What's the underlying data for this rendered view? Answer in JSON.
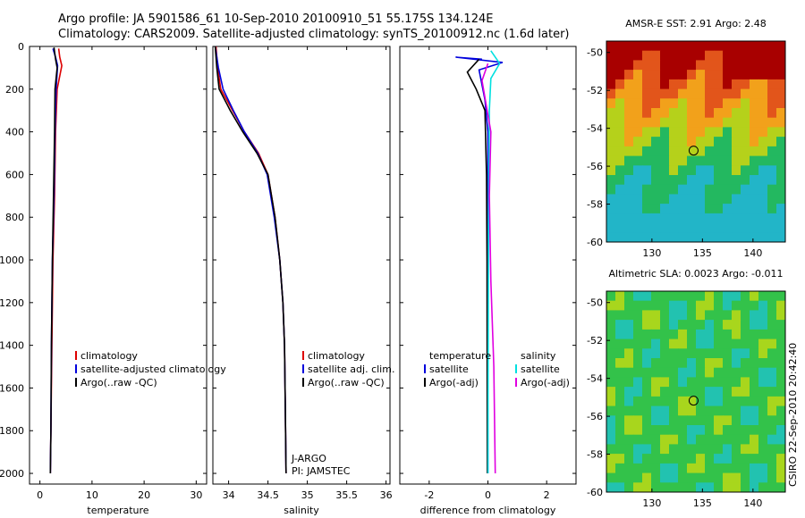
{
  "header": {
    "line1": "Argo profile: JA 5901586_61 10-Sep-2010 20100910_51 55.175S 134.124E",
    "line2": "Climatology: CARS2009. Satellite-adjusted climatology: synTS_20100912.nc (1.6d later)"
  },
  "side_label": "CSIRO 22-Sep-2010 20:42:40",
  "colors": {
    "clim": "#dd0000",
    "sat": "#0000dd",
    "argo": "#000000",
    "sat_sal": "#00e0e0",
    "argo_sal": "#e000e0"
  },
  "chart_data": [
    {
      "id": "temperature",
      "type": "line",
      "xlabel": "temperature",
      "xlim": [
        -2,
        32
      ],
      "ylim": [
        2050,
        0
      ],
      "xticks": [
        0,
        10,
        20,
        30
      ],
      "xtick_labels": [
        "0",
        "10",
        "20",
        "30"
      ],
      "yticks": [
        0,
        200,
        400,
        600,
        800,
        1000,
        1200,
        1400,
        1600,
        1800,
        2000
      ],
      "ytick_labels": [
        "0",
        "200",
        "400",
        "600",
        "800",
        "1000",
        "1200",
        "1400",
        "1600",
        "1800",
        "2000"
      ],
      "legend": [
        "climatology",
        "satellite-adjusted climatology",
        "Argo(..raw -QC)"
      ],
      "series": [
        {
          "name": "climatology",
          "color": "clim",
          "x": [
            3.6,
            3.8,
            4.2,
            3.3,
            3.0,
            2.8,
            2.5,
            2.3,
            2.1,
            2.0
          ],
          "y": [
            10,
            50,
            90,
            200,
            400,
            700,
            1000,
            1400,
            1800,
            2000
          ]
        },
        {
          "name": "satellite-adjusted climatology",
          "color": "sat",
          "x": [
            2.5,
            3.0,
            3.4,
            3.1,
            2.9,
            2.7,
            2.4,
            2.2,
            2.1,
            2.0
          ],
          "y": [
            10,
            50,
            90,
            200,
            400,
            700,
            1000,
            1400,
            1800,
            2000
          ]
        },
        {
          "name": "Argo",
          "color": "argo",
          "x": [
            2.7,
            3.0,
            3.3,
            2.9,
            2.8,
            2.6,
            2.4,
            2.2,
            2.1,
            2.0
          ],
          "y": [
            5,
            60,
            100,
            200,
            400,
            700,
            1000,
            1400,
            1800,
            2000
          ]
        }
      ]
    },
    {
      "id": "salinity",
      "type": "line",
      "xlabel": "salinity",
      "xlim": [
        33.8,
        36.05
      ],
      "ylim": [
        2050,
        0
      ],
      "xticks": [
        34,
        34.5,
        35,
        35.5,
        36
      ],
      "xtick_labels": [
        "34",
        "34.5",
        "35",
        "35.5",
        "36"
      ],
      "legend": [
        "climatology",
        "satellite adj. clim.",
        "Argo(..raw -QC)"
      ],
      "notes": [
        "J-ARGO",
        "PI: JAMSTEC"
      ],
      "series": [
        {
          "name": "climatology",
          "color": "clim",
          "x": [
            33.84,
            33.86,
            33.9,
            34.05,
            34.2,
            34.38,
            34.5,
            34.59,
            34.65,
            34.69,
            34.71,
            34.72,
            34.73
          ],
          "y": [
            0,
            100,
            200,
            300,
            400,
            500,
            600,
            800,
            1000,
            1200,
            1400,
            1700,
            2000
          ]
        },
        {
          "name": "satellite adj. clim.",
          "color": "sat",
          "x": [
            33.83,
            33.87,
            33.93,
            34.06,
            34.2,
            34.37,
            34.49,
            34.58,
            34.65,
            34.69,
            34.71,
            34.72,
            34.73
          ],
          "y": [
            0,
            100,
            200,
            300,
            400,
            500,
            600,
            800,
            1000,
            1200,
            1400,
            1700,
            2000
          ]
        },
        {
          "name": "Argo",
          "color": "argo",
          "x": [
            33.83,
            33.85,
            33.88,
            34.02,
            34.18,
            34.36,
            34.5,
            34.59,
            34.65,
            34.69,
            34.71,
            34.72,
            34.73
          ],
          "y": [
            0,
            100,
            200,
            300,
            400,
            500,
            600,
            800,
            1000,
            1200,
            1400,
            1700,
            2000
          ]
        }
      ]
    },
    {
      "id": "difference",
      "type": "line",
      "xlabel": "difference from climatology",
      "xlim": [
        -3,
        3
      ],
      "ylim": [
        2050,
        0
      ],
      "xticks": [
        -2,
        0,
        2
      ],
      "xtick_labels": [
        "-2",
        "0",
        "2"
      ],
      "legend_left": [
        "temperature",
        "satellite",
        "Argo(-adj)"
      ],
      "legend_right": [
        "salinity",
        "satellite",
        "Argo(-adj)"
      ],
      "series": [
        {
          "name": "temperature satellite",
          "color": "sat",
          "x": [
            -0.2,
            -1.1,
            0.5,
            -0.3,
            -0.1,
            0.0,
            0.0,
            0.0
          ],
          "y": [
            60,
            50,
            75,
            110,
            250,
            400,
            1000,
            2000
          ]
        },
        {
          "name": "temperature Argo(-adj)",
          "color": "argo",
          "x": [
            -0.3,
            -0.7,
            -0.4,
            -0.1,
            -0.05,
            -0.03,
            -0.02
          ],
          "y": [
            60,
            120,
            200,
            300,
            600,
            1000,
            2000
          ]
        },
        {
          "name": "salinity satellite",
          "color": "sat_sal",
          "x": [
            0.1,
            0.4,
            0.1,
            0.05,
            0.02,
            0.0
          ],
          "y": [
            20,
            80,
            150,
            300,
            800,
            2000
          ]
        },
        {
          "name": "salinity Argo(-adj)",
          "color": "argo_sal",
          "x": [
            0.0,
            -0.2,
            0.1,
            0.05,
            0.1,
            0.2,
            0.25
          ],
          "y": [
            80,
            160,
            400,
            700,
            1100,
            1500,
            2000
          ]
        }
      ]
    },
    {
      "id": "sst_map",
      "type": "heatmap",
      "title": "AMSR-E SST: 2.91  Argo: 2.48",
      "xlim": [
        125.5,
        143.2
      ],
      "ylim": [
        -60,
        -49.4
      ],
      "xticks": [
        130,
        135,
        140
      ],
      "xtick_labels": [
        "130",
        "135",
        "140"
      ],
      "yticks": [
        -50,
        -52,
        -54,
        -56,
        -58,
        -60
      ],
      "ytick_labels": [
        "-50",
        "-52",
        "-54",
        "-56",
        "-58",
        "-60"
      ],
      "marker": {
        "lon": 134.124,
        "lat": -55.175
      }
    },
    {
      "id": "sla_map",
      "type": "heatmap",
      "title": "Altimetric SLA: 0.0023  Argo: -0.011",
      "xlim": [
        125.5,
        143.2
      ],
      "ylim": [
        -60,
        -49.4
      ],
      "xticks": [
        130,
        135,
        140
      ],
      "xtick_labels": [
        "130",
        "135",
        "140"
      ],
      "yticks": [
        -50,
        -52,
        -54,
        -56,
        -58,
        -60
      ],
      "ytick_labels": [
        "-50",
        "-52",
        "-54",
        "-56",
        "-58",
        "-60"
      ],
      "marker": {
        "lon": 134.124,
        "lat": -55.175
      }
    }
  ]
}
